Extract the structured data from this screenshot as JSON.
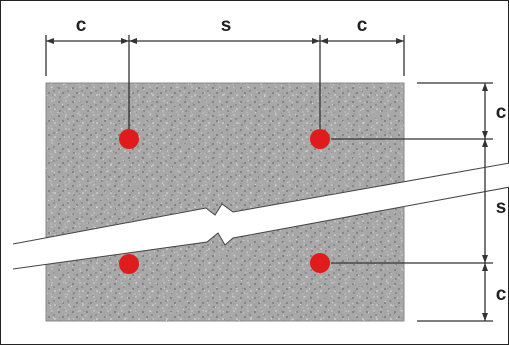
{
  "labels": {
    "top_left_c": "c",
    "top_s": "s",
    "top_right_c": "c",
    "right_top_c": "c",
    "right_s": "s",
    "right_bottom_c": "c"
  },
  "colors": {
    "concrete": "#a9a9a9",
    "rebar": "#e01b1b",
    "line": "#333333"
  }
}
